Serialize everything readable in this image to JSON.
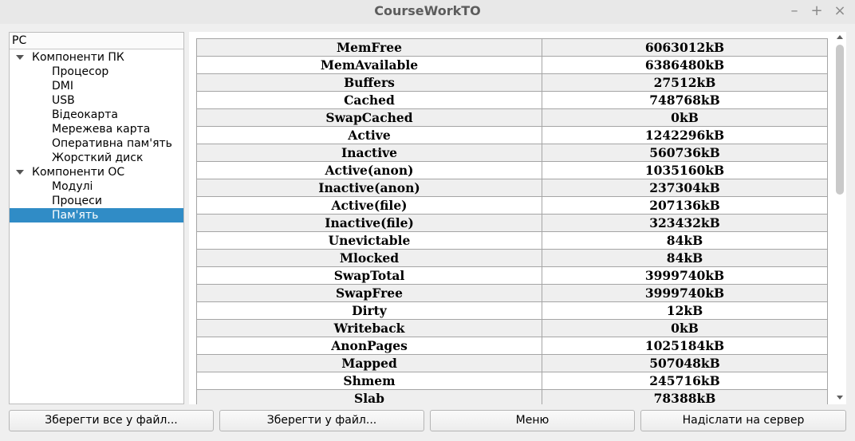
{
  "window": {
    "title": "CourseWorkTO",
    "controls": {
      "minimize": "–",
      "maximize": "+",
      "close": "×"
    }
  },
  "tree": {
    "header": "PC",
    "items": [
      {
        "label": "Компоненти ПК",
        "level": 0,
        "expanded": true
      },
      {
        "label": "Процесор",
        "level": 1
      },
      {
        "label": "DMI",
        "level": 1
      },
      {
        "label": "USB",
        "level": 1
      },
      {
        "label": "Відеокарта",
        "level": 1
      },
      {
        "label": "Мережева карта",
        "level": 1
      },
      {
        "label": "Оперативна пам'ять",
        "level": 1
      },
      {
        "label": "Жорсткий диск",
        "level": 1
      },
      {
        "label": "Компоненти ОС",
        "level": 0,
        "expanded": true
      },
      {
        "label": "Модулі",
        "level": 1
      },
      {
        "label": "Процеси",
        "level": 1
      },
      {
        "label": "Пам'ять",
        "level": 1,
        "selected": true
      }
    ]
  },
  "memory_table": {
    "rows": [
      {
        "key": "MemFree",
        "value": "6063012kB"
      },
      {
        "key": "MemAvailable",
        "value": "6386480kB"
      },
      {
        "key": "Buffers",
        "value": "27512kB"
      },
      {
        "key": "Cached",
        "value": "748768kB"
      },
      {
        "key": "SwapCached",
        "value": "0kB"
      },
      {
        "key": "Active",
        "value": "1242296kB"
      },
      {
        "key": "Inactive",
        "value": "560736kB"
      },
      {
        "key": "Active(anon)",
        "value": "1035160kB"
      },
      {
        "key": "Inactive(anon)",
        "value": "237304kB"
      },
      {
        "key": "Active(file)",
        "value": "207136kB"
      },
      {
        "key": "Inactive(file)",
        "value": "323432kB"
      },
      {
        "key": "Unevictable",
        "value": "84kB"
      },
      {
        "key": "Mlocked",
        "value": "84kB"
      },
      {
        "key": "SwapTotal",
        "value": "3999740kB"
      },
      {
        "key": "SwapFree",
        "value": "3999740kB"
      },
      {
        "key": "Dirty",
        "value": "12kB"
      },
      {
        "key": "Writeback",
        "value": "0kB"
      },
      {
        "key": "AnonPages",
        "value": "1025184kB"
      },
      {
        "key": "Mapped",
        "value": "507048kB"
      },
      {
        "key": "Shmem",
        "value": "245716kB"
      },
      {
        "key": "Slab",
        "value": "78388kB"
      }
    ]
  },
  "buttons": {
    "save_all": "Зберегти все у файл...",
    "save": "Зберегти у файл...",
    "menu": "Меню",
    "send": "Надіслати на сервер"
  },
  "colors": {
    "selection": "#308cc6",
    "row_alt": "#efefef",
    "title_text": "#5c5c5c"
  }
}
